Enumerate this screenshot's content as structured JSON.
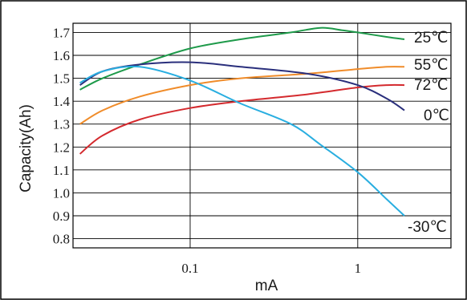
{
  "chart_data": {
    "type": "line",
    "title": "",
    "xlabel": "mA",
    "ylabel": "Capacity(Ah)",
    "x_scale": "log",
    "xlim": [
      0.02,
      3.6
    ],
    "ylim": [
      0.76,
      1.74
    ],
    "x_ticks": [
      0.1,
      1
    ],
    "x_tick_labels": [
      "0.1",
      "1"
    ],
    "y_ticks": [
      0.8,
      0.9,
      1.0,
      1.1,
      1.2,
      1.3,
      1.4,
      1.5,
      1.6,
      1.7
    ],
    "y_tick_labels": [
      "0.8",
      "0.9",
      "1.0",
      "1.1",
      "1.2",
      "1.3",
      "1.4",
      "1.5",
      "1.6",
      "1.7"
    ],
    "grid": true,
    "legend": "inline labels at right end of lines",
    "series": [
      {
        "name": "25℃",
        "color": "#1e9a4a",
        "x": [
          0.022,
          0.03,
          0.05,
          0.1,
          0.2,
          0.4,
          0.6,
          0.8,
          1,
          1.5,
          1.9
        ],
        "y": [
          1.45,
          1.5,
          1.56,
          1.63,
          1.67,
          1.7,
          1.72,
          1.71,
          1.7,
          1.68,
          1.67
        ]
      },
      {
        "name": "55℃",
        "color": "#f08c2a",
        "x": [
          0.022,
          0.03,
          0.05,
          0.1,
          0.2,
          0.5,
          1,
          1.5,
          1.9
        ],
        "y": [
          1.3,
          1.36,
          1.42,
          1.47,
          1.5,
          1.52,
          1.54,
          1.55,
          1.55
        ]
      },
      {
        "name": "72℃",
        "color": "#d42a2e",
        "x": [
          0.022,
          0.03,
          0.05,
          0.1,
          0.2,
          0.5,
          1,
          1.5,
          1.9
        ],
        "y": [
          1.17,
          1.25,
          1.32,
          1.37,
          1.4,
          1.43,
          1.46,
          1.47,
          1.47
        ]
      },
      {
        "name": "0℃",
        "color": "#2a2f7c",
        "x": [
          0.022,
          0.03,
          0.05,
          0.1,
          0.2,
          0.5,
          1,
          1.5,
          1.9
        ],
        "y": [
          1.47,
          1.53,
          1.56,
          1.57,
          1.55,
          1.52,
          1.47,
          1.41,
          1.36
        ]
      },
      {
        "name": "-30℃",
        "color": "#29aee0",
        "x": [
          0.022,
          0.03,
          0.05,
          0.1,
          0.2,
          0.4,
          0.6,
          1,
          1.5,
          1.9
        ],
        "y": [
          1.48,
          1.53,
          1.55,
          1.49,
          1.39,
          1.3,
          1.21,
          1.09,
          0.97,
          0.9
        ]
      }
    ],
    "series_labels": [
      "25℃",
      "55℃",
      "72℃",
      "0℃",
      "-30℃"
    ]
  }
}
